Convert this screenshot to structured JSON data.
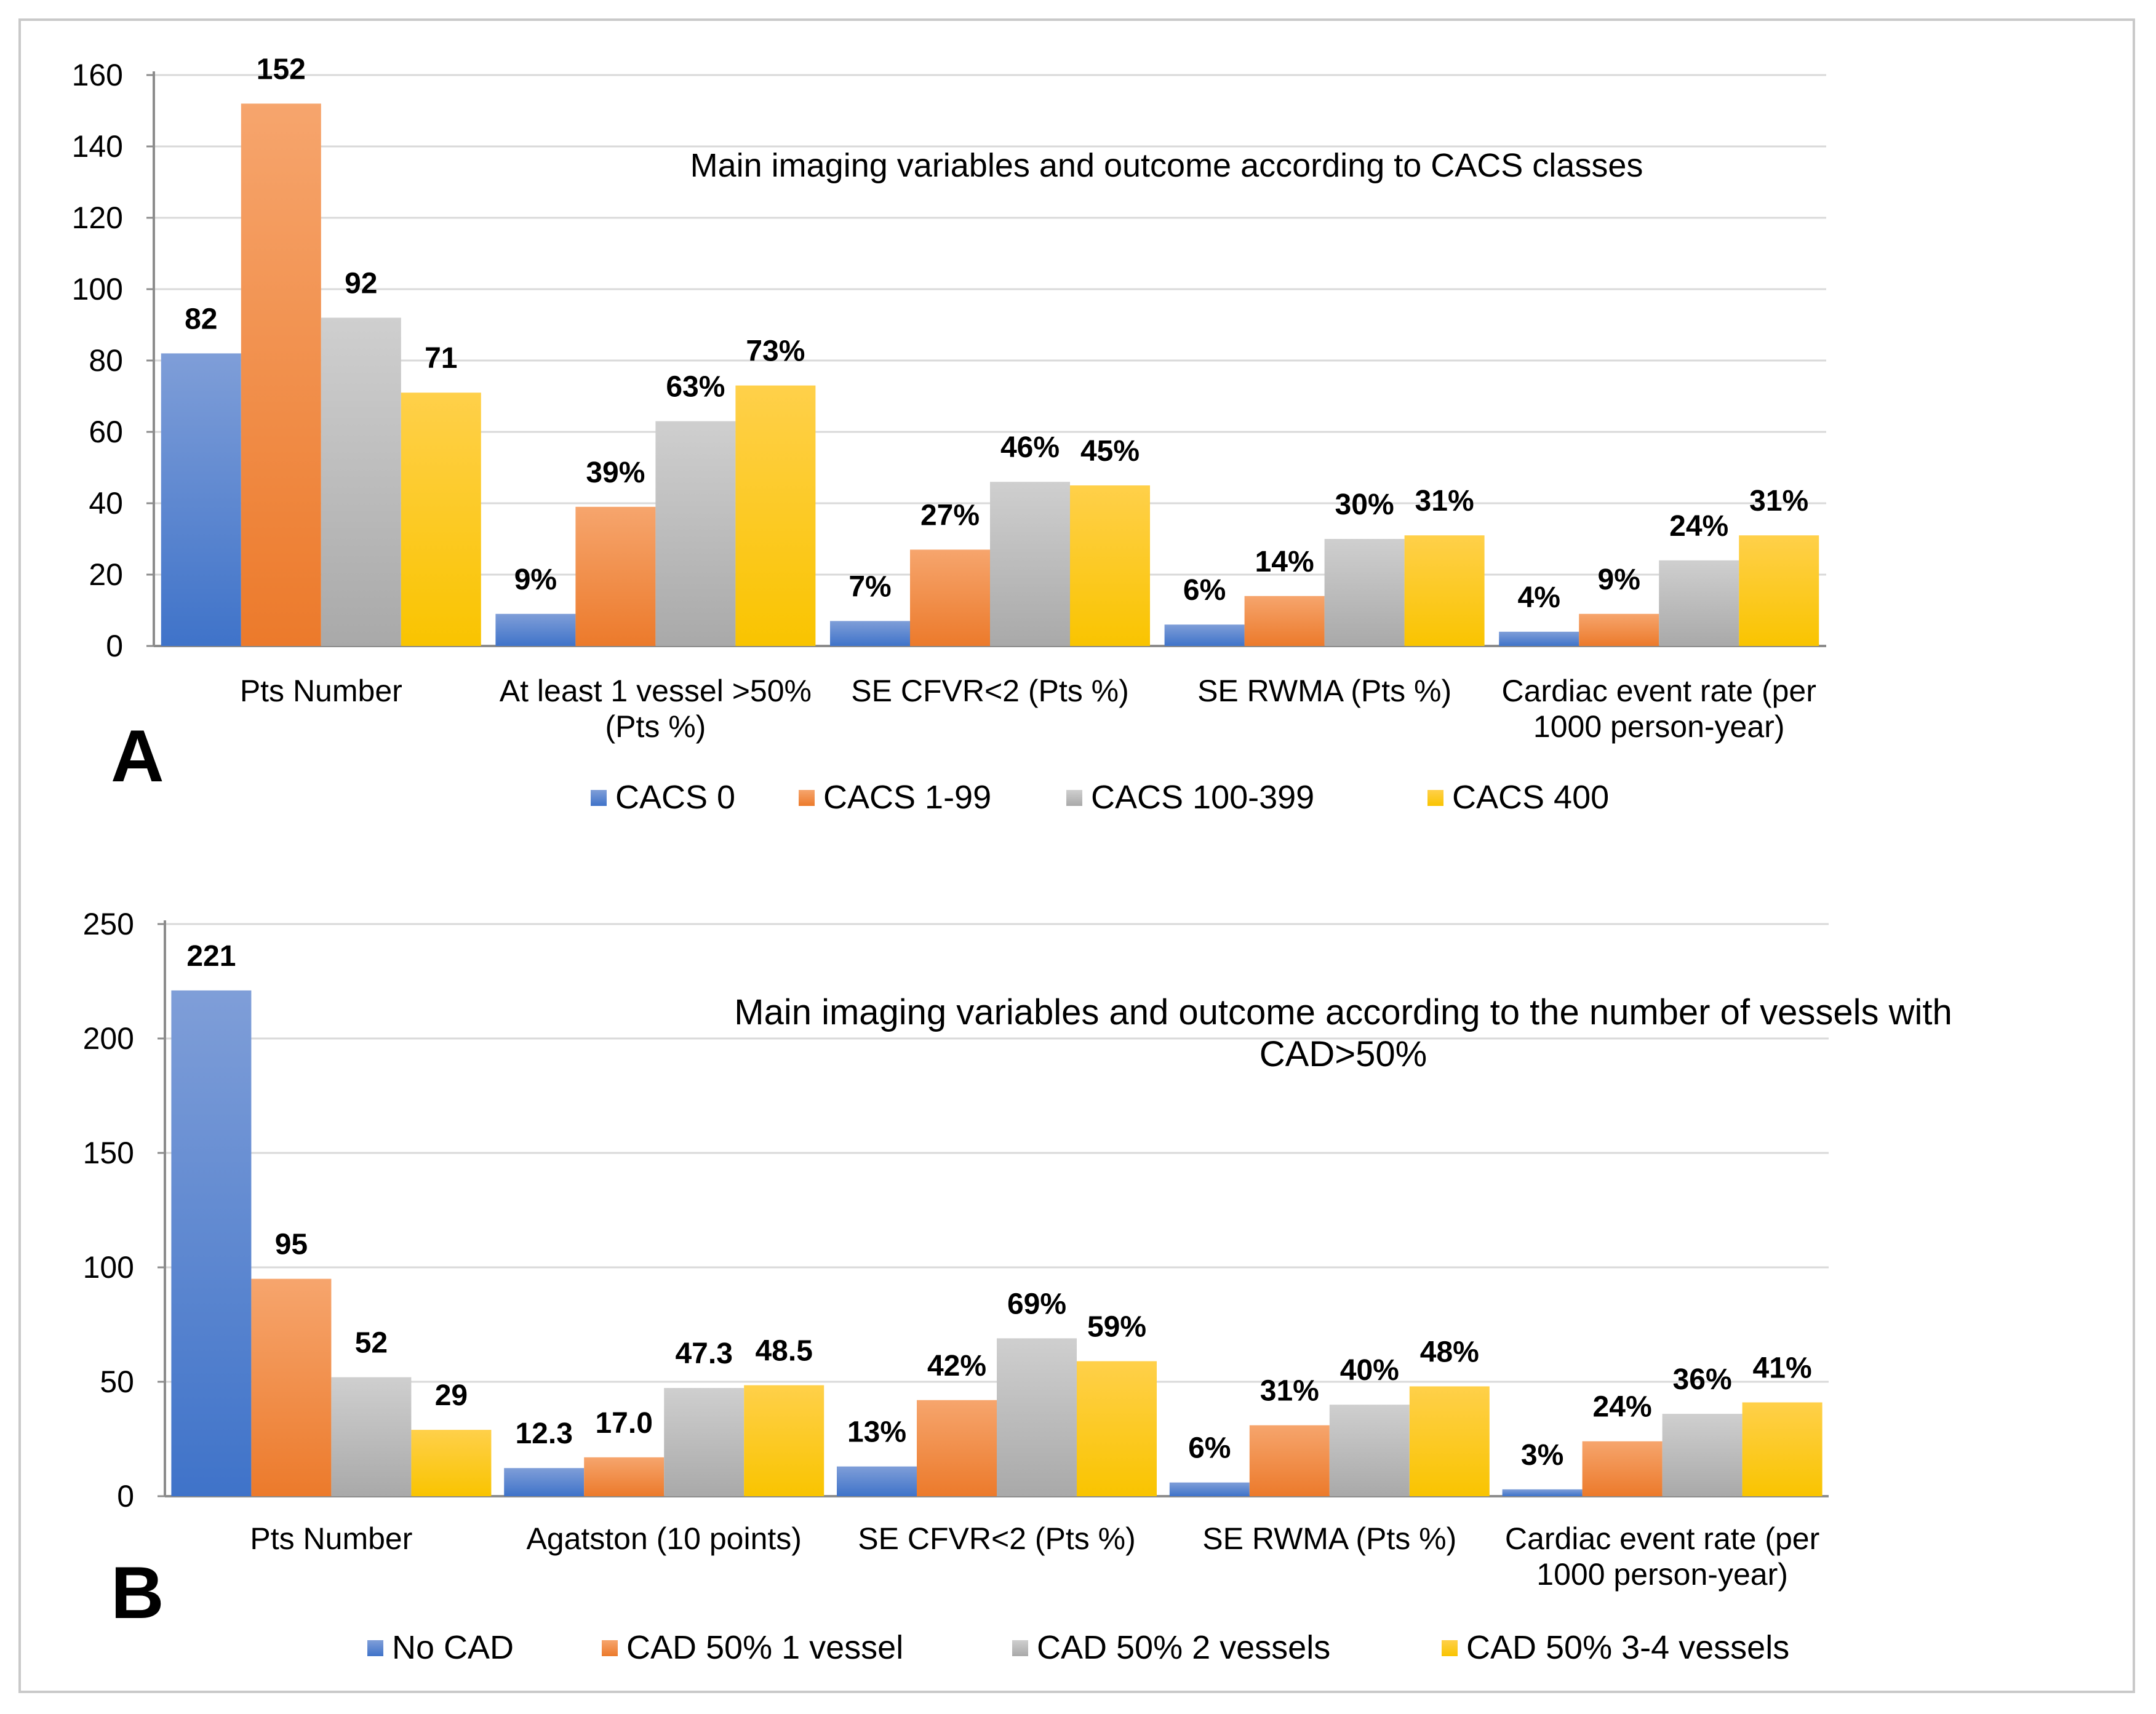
{
  "chart_data": [
    {
      "panel_label": "A",
      "type": "bar",
      "title": "Main imaging variables and outcome according to CACS classes",
      "categories": [
        "Pts Number",
        "At least 1 vessel >50%\n(Pts %)",
        "SE CFVR<2 (Pts %)",
        "SE RWMA (Pts %)",
        "Cardiac event rate (per\n1000 person-year)"
      ],
      "series": [
        {
          "name": "CACS 0",
          "values": [
            82,
            9,
            7,
            6,
            4
          ],
          "labels": [
            "82",
            "9%",
            "7%",
            "6%",
            "4%"
          ]
        },
        {
          "name": "CACS 1-99",
          "values": [
            152,
            39,
            27,
            14,
            9
          ],
          "labels": [
            "152",
            "39%",
            "27%",
            "14%",
            "9%"
          ]
        },
        {
          "name": "CACS 100-399",
          "values": [
            92,
            63,
            46,
            30,
            24
          ],
          "labels": [
            "92",
            "63%",
            "46%",
            "30%",
            "24%"
          ]
        },
        {
          "name": "CACS 400",
          "values": [
            71,
            73,
            45,
            31,
            31
          ],
          "labels": [
            "71",
            "73%",
            "45%",
            "31%",
            "31%"
          ]
        }
      ],
      "ylim": [
        0,
        160
      ],
      "yticks": [
        0,
        20,
        40,
        60,
        80,
        100,
        120,
        140,
        160
      ],
      "grid": true,
      "legend_position": "bottom"
    },
    {
      "panel_label": "B",
      "type": "bar",
      "title": "Main imaging variables and outcome according to the number of vessels with\nCAD>50%",
      "categories": [
        "Pts Number",
        "Agatston (10 points)",
        "SE CFVR<2 (Pts %)",
        "SE RWMA (Pts %)",
        "Cardiac event rate (per\n1000 person-year)"
      ],
      "series": [
        {
          "name": "No CAD",
          "values": [
            221,
            12.3,
            13,
            6,
            3
          ],
          "labels": [
            "221",
            "12.3",
            "13%",
            "6%",
            "3%"
          ]
        },
        {
          "name": "CAD 50% 1 vessel",
          "values": [
            95,
            17.0,
            42,
            31,
            24
          ],
          "labels": [
            "95",
            "17.0",
            "42%",
            "31%",
            "24%"
          ]
        },
        {
          "name": "CAD 50% 2 vessels",
          "values": [
            52,
            47.3,
            69,
            40,
            36
          ],
          "labels": [
            "52",
            "47.3",
            "69%",
            "40%",
            "36%"
          ]
        },
        {
          "name": "CAD 50% 3-4 vessels",
          "values": [
            29,
            48.5,
            59,
            48,
            41
          ],
          "labels": [
            "29",
            "48.5",
            "59%",
            "48%",
            "41%"
          ]
        }
      ],
      "ylim": [
        0,
        250
      ],
      "yticks": [
        0,
        50,
        100,
        150,
        200,
        250
      ],
      "grid": true,
      "legend_position": "bottom"
    }
  ],
  "colors": {
    "series": [
      {
        "top": "#7f9ed8",
        "bottom": "#3f73c9"
      },
      {
        "top": "#f6a56d",
        "bottom": "#ec7a2b"
      },
      {
        "top": "#cfcfcf",
        "bottom": "#a9a9a9"
      },
      {
        "top": "#ffd04a",
        "bottom": "#f9c400"
      }
    ],
    "grid": "#d9d9d9",
    "axis": "#8c8c8c",
    "text": "#000000"
  }
}
